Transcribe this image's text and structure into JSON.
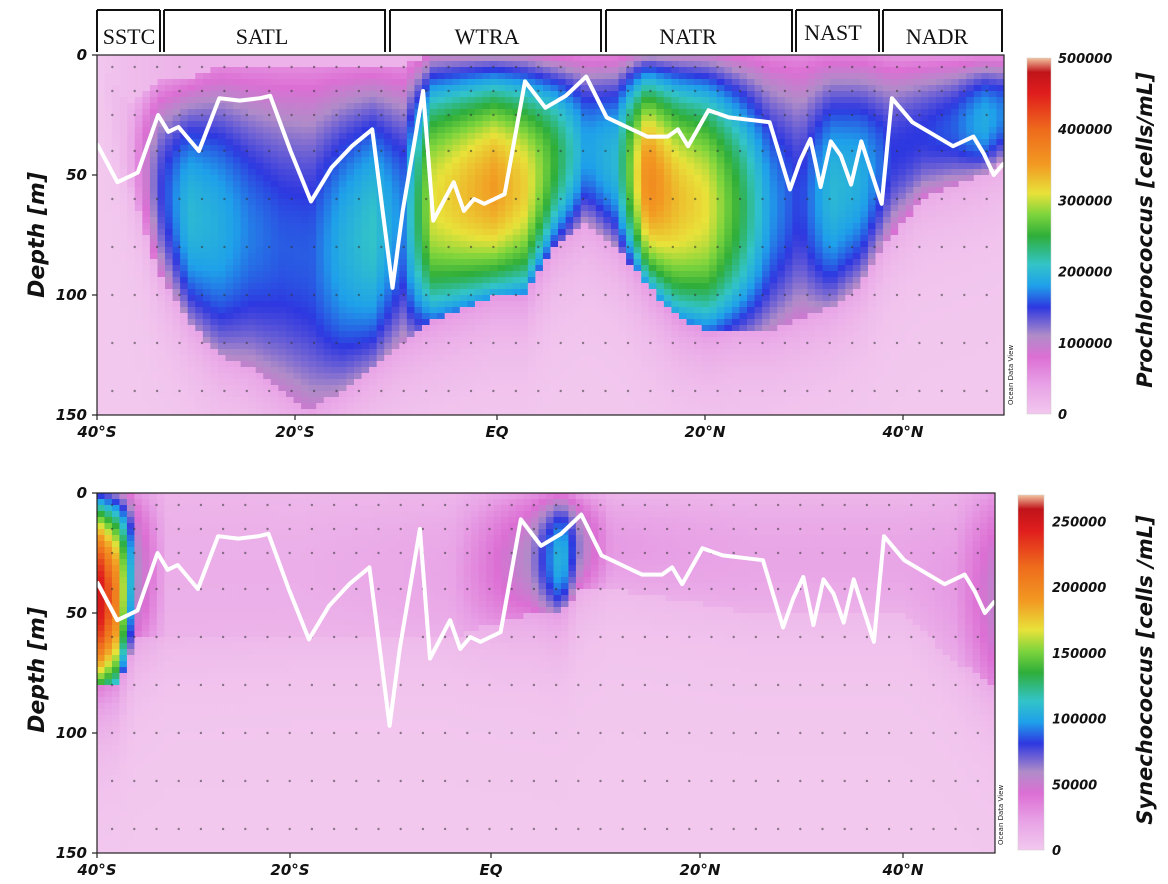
{
  "provinces": [
    "SSTC",
    "SATL",
    "WTRA",
    "NATR",
    "NAST",
    "NADR"
  ],
  "watermark": "Ocean Data View",
  "chart_data": [
    {
      "type": "heatmap",
      "ylabel": "Depth [m]",
      "colorbar_label": "Prochlorococcus [cells/mL]",
      "colorbar_ticks": [
        "500000",
        "400000",
        "300000",
        "200000",
        "100000",
        "0"
      ],
      "xticks": [
        "40°S",
        "20°S",
        "EQ",
        "20°N",
        "40°N"
      ],
      "yticks": [
        "0",
        "50",
        "100",
        "150"
      ],
      "x_range_lat": [
        -40,
        49
      ],
      "y_range_depth_m": [
        0,
        150
      ],
      "colorbar_max": 500000,
      "columns": [
        {
          "lat": -40,
          "top": 0,
          "bot": 0,
          "peak": 0,
          "base": 0
        },
        {
          "lat": -37,
          "top": 20,
          "bot": 50,
          "peak": 20000,
          "base": 20000
        },
        {
          "lat": -34,
          "top": 10,
          "bot": 90,
          "peak": 140000,
          "base": 30000
        },
        {
          "lat": -31,
          "top": 10,
          "bot": 110,
          "peak": 200000,
          "base": 40000
        },
        {
          "lat": -28,
          "top": 5,
          "bot": 125,
          "peak": 190000,
          "base": 40000
        },
        {
          "lat": -25,
          "top": 5,
          "bot": 130,
          "peak": 170000,
          "base": 40000
        },
        {
          "lat": -22,
          "top": 5,
          "bot": 140,
          "peak": 160000,
          "base": 40000
        },
        {
          "lat": -19,
          "top": 5,
          "bot": 148,
          "peak": 160000,
          "base": 40000
        },
        {
          "lat": -16,
          "top": 5,
          "bot": 140,
          "peak": 190000,
          "base": 40000
        },
        {
          "lat": -13,
          "top": 5,
          "bot": 130,
          "peak": 210000,
          "base": 40000
        },
        {
          "lat": -10,
          "top": 5,
          "bot": 120,
          "peak": 170000,
          "base": 40000
        },
        {
          "lat": -7,
          "top": 0,
          "bot": 110,
          "peak": 310000,
          "base": 50000
        },
        {
          "lat": -4,
          "top": 0,
          "bot": 105,
          "peak": 330000,
          "base": 50000
        },
        {
          "lat": -1,
          "top": 0,
          "bot": 100,
          "peak": 350000,
          "base": 50000
        },
        {
          "lat": 2,
          "top": 0,
          "bot": 100,
          "peak": 320000,
          "base": 50000
        },
        {
          "lat": 5,
          "top": 0,
          "bot": 80,
          "peak": 250000,
          "base": 40000
        },
        {
          "lat": 8,
          "top": 0,
          "bot": 70,
          "peak": 180000,
          "base": 40000
        },
        {
          "lat": 11,
          "top": 0,
          "bot": 80,
          "peak": 200000,
          "base": 40000
        },
        {
          "lat": 14,
          "top": 0,
          "bot": 95,
          "peak": 370000,
          "base": 50000
        },
        {
          "lat": 17,
          "top": 0,
          "bot": 110,
          "peak": 330000,
          "base": 50000
        },
        {
          "lat": 20,
          "top": 0,
          "bot": 115,
          "peak": 310000,
          "base": 50000
        },
        {
          "lat": 23,
          "top": 0,
          "bot": 115,
          "peak": 250000,
          "base": 40000
        },
        {
          "lat": 26,
          "top": 0,
          "bot": 115,
          "peak": 180000,
          "base": 40000
        },
        {
          "lat": 29,
          "top": 0,
          "bot": 110,
          "peak": 150000,
          "base": 40000
        },
        {
          "lat": 32,
          "top": 0,
          "bot": 105,
          "peak": 200000,
          "base": 40000
        },
        {
          "lat": 35,
          "top": 0,
          "bot": 95,
          "peak": 190000,
          "base": 40000
        },
        {
          "lat": 38,
          "top": 0,
          "bot": 75,
          "peak": 150000,
          "base": 30000
        },
        {
          "lat": 41,
          "top": 0,
          "bot": 60,
          "peak": 150000,
          "base": 30000
        },
        {
          "lat": 44,
          "top": 0,
          "bot": 55,
          "peak": 160000,
          "base": 30000
        },
        {
          "lat": 47,
          "top": 0,
          "bot": 50,
          "peak": 190000,
          "base": 30000
        },
        {
          "lat": 49,
          "top": 0,
          "bot": 45,
          "peak": 170000,
          "base": 30000
        }
      ],
      "mld_line": {
        "lat": [
          -40,
          -38,
          -36,
          -34,
          -33,
          -32,
          -30,
          -28,
          -26,
          -24,
          -23,
          -21,
          -19,
          -17,
          -15,
          -13,
          -11,
          -10,
          -8,
          -7,
          -5,
          -4,
          -3,
          -2,
          -1,
          0,
          2,
          4,
          6,
          8,
          10,
          11,
          12,
          14,
          16,
          17,
          18,
          20,
          22,
          24,
          26,
          28,
          29,
          30,
          31,
          32,
          33,
          34,
          35,
          37,
          38,
          40,
          42,
          44,
          46,
          47,
          48,
          49
        ],
        "depth": [
          37,
          53,
          49,
          25,
          32,
          30,
          40,
          18,
          19,
          18,
          17,
          40,
          61,
          47,
          38,
          31,
          97,
          65,
          15,
          69,
          53,
          65,
          60,
          62,
          60,
          58,
          11,
          22,
          17,
          9,
          26,
          28,
          30,
          34,
          34,
          31,
          38,
          23,
          26,
          27,
          28,
          56,
          44,
          35,
          55,
          36,
          42,
          54,
          36,
          62,
          18,
          28,
          33,
          38,
          34,
          41,
          50,
          45
        ]
      }
    },
    {
      "type": "heatmap",
      "ylabel": "Depth [m]",
      "colorbar_label": "Synechococcus [cells /mL]",
      "colorbar_ticks": [
        "250000",
        "200000",
        "150000",
        "100000",
        "50000",
        "0"
      ],
      "xticks": [
        "40°S",
        "20°S",
        "EQ",
        "20°N",
        "40°N"
      ],
      "yticks": [
        "0",
        "50",
        "100",
        "150"
      ],
      "x_range_lat": [
        -40,
        49
      ],
      "y_range_depth_m": [
        0,
        150
      ],
      "colorbar_max": 270000,
      "columns": [
        {
          "lat": -40,
          "top": 0,
          "bot": 80,
          "peak": 260000,
          "base": 40000
        },
        {
          "lat": -38,
          "top": 0,
          "bot": 80,
          "peak": 200000,
          "base": 30000
        },
        {
          "lat": -36,
          "top": 0,
          "bot": 60,
          "peak": 60000,
          "base": 20000
        },
        {
          "lat": -33,
          "top": 0,
          "bot": 60,
          "peak": 15000,
          "base": 10000
        },
        {
          "lat": -20,
          "top": 0,
          "bot": 60,
          "peak": 15000,
          "base": 8000
        },
        {
          "lat": -5,
          "top": 0,
          "bot": 60,
          "peak": 20000,
          "base": 8000
        },
        {
          "lat": 3,
          "top": 0,
          "bot": 50,
          "peak": 60000,
          "base": 20000
        },
        {
          "lat": 6,
          "top": 0,
          "bot": 50,
          "peak": 110000,
          "base": 25000
        },
        {
          "lat": 8,
          "top": 0,
          "bot": 40,
          "peak": 60000,
          "base": 15000
        },
        {
          "lat": 11,
          "top": 0,
          "bot": 40,
          "peak": 25000,
          "base": 8000
        },
        {
          "lat": 25,
          "top": 0,
          "bot": 50,
          "peak": 20000,
          "base": 8000
        },
        {
          "lat": 40,
          "top": 0,
          "bot": 50,
          "peak": 20000,
          "base": 8000
        },
        {
          "lat": 45,
          "top": 0,
          "bot": 70,
          "peak": 25000,
          "base": 10000
        },
        {
          "lat": 49,
          "top": 0,
          "bot": 80,
          "peak": 55000,
          "base": 20000
        }
      ],
      "mld_line_same_as_panel": 0
    }
  ]
}
